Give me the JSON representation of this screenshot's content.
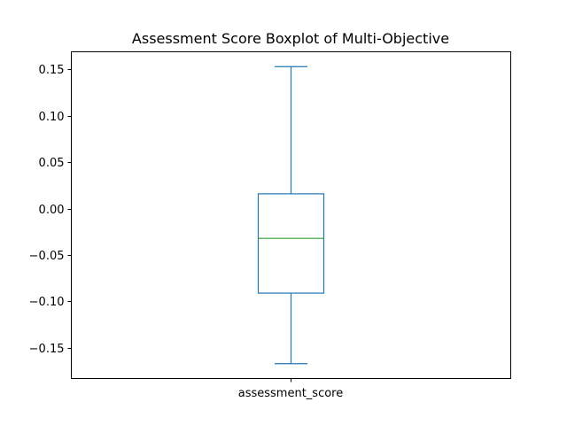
{
  "chart_data": {
    "type": "boxplot",
    "title": "Assessment Score Boxplot of Multi-Objective",
    "xlabel": "",
    "ylabel": "",
    "categories": [
      "assessment_score"
    ],
    "boxes": [
      {
        "category": "assessment_score",
        "whisker_low": -0.167,
        "q1": -0.091,
        "median": -0.032,
        "q3": 0.016,
        "whisker_high": 0.153
      }
    ],
    "yticks": [
      0.15,
      0.1,
      0.05,
      0.0,
      -0.05,
      -0.1,
      -0.15
    ],
    "ytick_labels": [
      "0.15",
      "0.10",
      "0.05",
      "0.00",
      "−0.05",
      "−0.10",
      "−0.15"
    ],
    "ylim": [
      -0.183,
      0.169
    ],
    "grid": false,
    "colors": {
      "box": "#1f77b4",
      "median": "#2ca02c"
    }
  }
}
